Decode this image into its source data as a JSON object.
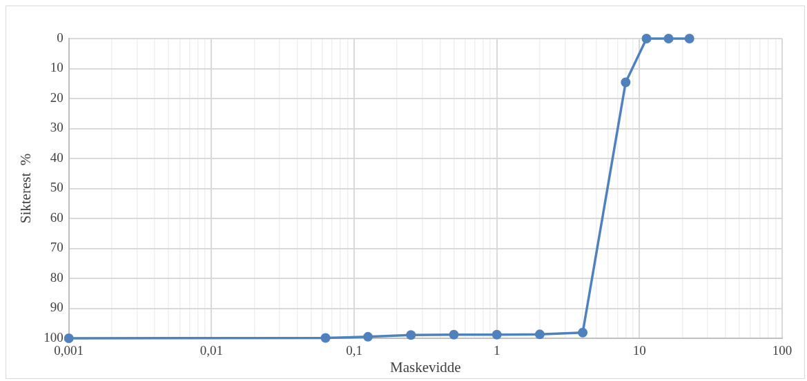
{
  "chart_data": {
    "type": "line",
    "xlabel": "Maskevidde",
    "ylabel": "Sikterest  %",
    "x": [
      0.001,
      0.063,
      0.125,
      0.25,
      0.5,
      1,
      2,
      4,
      8,
      11.2,
      16,
      22.4
    ],
    "series": [
      {
        "color": "#4f81bd",
        "values": [
          100,
          99.9,
          99.5,
          98.9,
          98.8,
          98.8,
          98.7,
          98.1,
          14.6,
          0,
          0,
          0
        ]
      }
    ],
    "log": "x",
    "xlim": [
      0.001,
      100
    ],
    "xticks": [
      {
        "value": 0.001,
        "label": "0,001"
      },
      {
        "value": 0.002,
        "label": null
      },
      {
        "value": 0.003,
        "label": null
      },
      {
        "value": 0.004,
        "label": null
      },
      {
        "value": 0.005,
        "label": null
      },
      {
        "value": 0.006,
        "label": null
      },
      {
        "value": 0.007,
        "label": null
      },
      {
        "value": 0.008,
        "label": null
      },
      {
        "value": 0.009,
        "label": null
      },
      {
        "value": 0.01,
        "label": "0,01"
      },
      {
        "value": 0.02,
        "label": null
      },
      {
        "value": 0.03,
        "label": null
      },
      {
        "value": 0.04,
        "label": null
      },
      {
        "value": 0.05,
        "label": null
      },
      {
        "value": 0.06,
        "label": null
      },
      {
        "value": 0.07,
        "label": null
      },
      {
        "value": 0.08,
        "label": null
      },
      {
        "value": 0.09,
        "label": null
      },
      {
        "value": 0.1,
        "label": "0,1"
      },
      {
        "value": 0.2,
        "label": null
      },
      {
        "value": 0.3,
        "label": null
      },
      {
        "value": 0.4,
        "label": null
      },
      {
        "value": 0.5,
        "label": null
      },
      {
        "value": 0.6,
        "label": null
      },
      {
        "value": 0.7,
        "label": null
      },
      {
        "value": 0.8,
        "label": null
      },
      {
        "value": 0.9,
        "label": null
      },
      {
        "value": 1,
        "label": "1"
      },
      {
        "value": 2,
        "label": null
      },
      {
        "value": 3,
        "label": null
      },
      {
        "value": 4,
        "label": null
      },
      {
        "value": 5,
        "label": null
      },
      {
        "value": 6,
        "label": null
      },
      {
        "value": 7,
        "label": null
      },
      {
        "value": 8,
        "label": null
      },
      {
        "value": 9,
        "label": null
      },
      {
        "value": 10,
        "label": "10"
      },
      {
        "value": 20,
        "label": null
      },
      {
        "value": 30,
        "label": null
      },
      {
        "value": 40,
        "label": null
      },
      {
        "value": 50,
        "label": null
      },
      {
        "value": 60,
        "label": null
      },
      {
        "value": 70,
        "label": null
      },
      {
        "value": 80,
        "label": null
      },
      {
        "value": 90,
        "label": null
      },
      {
        "value": 100,
        "label": "100"
      }
    ],
    "ylim": [
      100,
      0
    ],
    "yticks": [
      0,
      10,
      20,
      30,
      40,
      50,
      60,
      70,
      80,
      90,
      100
    ],
    "grid": true,
    "legend": false,
    "marker": "circle",
    "line_style": "solid"
  }
}
